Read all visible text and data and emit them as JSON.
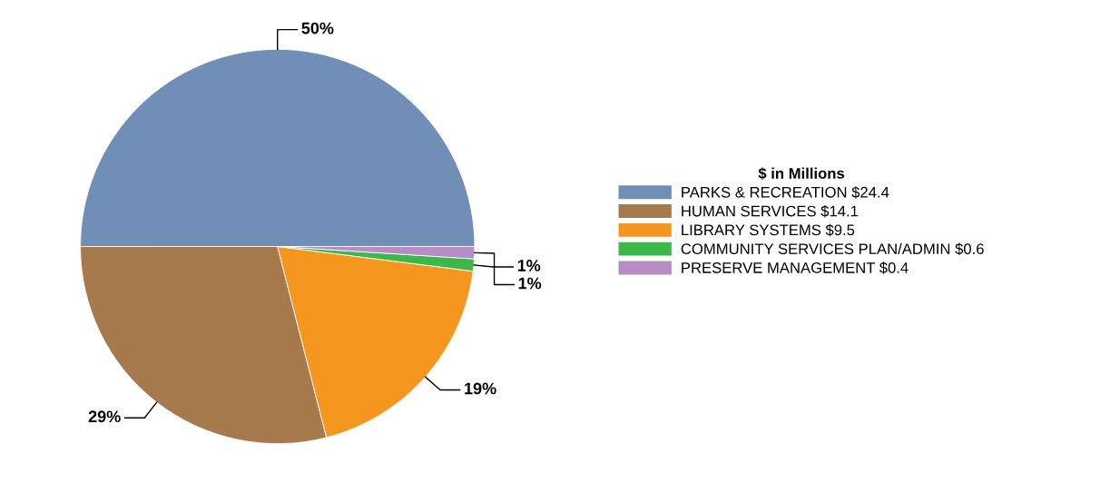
{
  "chart_data": {
    "type": "pie",
    "categories": [
      "PARKS & RECREATION $24.4",
      "HUMAN SERVICES $14.1",
      "LIBRARY SYSTEMS $9.5",
      "COMMUNITY SERVICES PLAN/ADMIN $0.6",
      "PRESERVE MANAGEMENT $0.4"
    ],
    "values": [
      50,
      29,
      19,
      1,
      1
    ],
    "value_labels": [
      "50%",
      "29%",
      "19%",
      "1%",
      "1%"
    ],
    "colors": [
      "#718eb6",
      "#a77a4e",
      "#f5961e",
      "#3cb84a",
      "#b58cc4"
    ],
    "legend_title": "$ in Millions",
    "legend": "right"
  }
}
